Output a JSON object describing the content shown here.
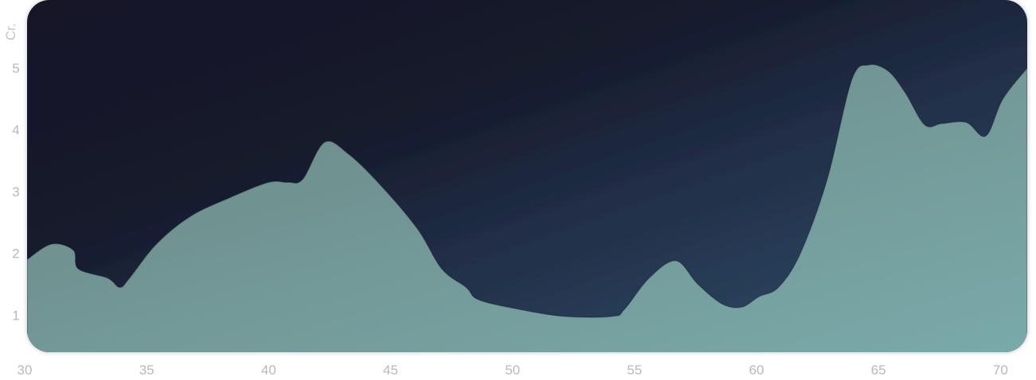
{
  "chart_data": {
    "type": "area",
    "ylabel": "Cr.",
    "xlim": [
      30,
      71
    ],
    "ylim": [
      0.4,
      6.1
    ],
    "x_ticks": [
      "30",
      "35",
      "40",
      "45",
      "50",
      "55",
      "60",
      "65",
      "70"
    ],
    "y_ticks": [
      "1",
      "2",
      "3",
      "4",
      "5"
    ],
    "grid": false,
    "colors": {
      "background_top": "#161a2c",
      "background_bottom": "#2e4560",
      "fill_start": "#6b8684",
      "fill_end": "#7aaaaa",
      "axis_text": "#b7b9bd"
    },
    "series": [
      {
        "x": [
          30,
          31,
          31.9,
          32.1,
          33.3,
          33.8,
          34.2,
          35.3,
          36.7,
          38.3,
          39.9,
          40.7,
          41.3,
          42.2,
          43.2,
          44.5,
          46,
          47,
          48,
          48.5,
          50.1,
          52,
          54,
          54.5,
          55.5,
          56.6,
          57.5,
          58.5,
          59.3,
          60,
          60.8,
          61.7,
          62.8,
          63.8,
          64.5,
          65.3,
          66,
          66.8,
          67.5,
          68.5,
          69.3,
          70,
          71
        ],
        "y": [
          1.9,
          2.15,
          2.05,
          1.75,
          1.6,
          1.45,
          1.6,
          2.15,
          2.6,
          2.9,
          3.15,
          3.15,
          3.2,
          3.8,
          3.6,
          3.1,
          2.4,
          1.75,
          1.45,
          1.25,
          1.1,
          0.98,
          0.98,
          1.1,
          1.6,
          1.88,
          1.5,
          1.18,
          1.13,
          1.3,
          1.45,
          2.0,
          3.2,
          4.8,
          5.05,
          4.95,
          4.6,
          4.08,
          4.1,
          4.12,
          3.9,
          4.5,
          5.0
        ]
      }
    ]
  }
}
